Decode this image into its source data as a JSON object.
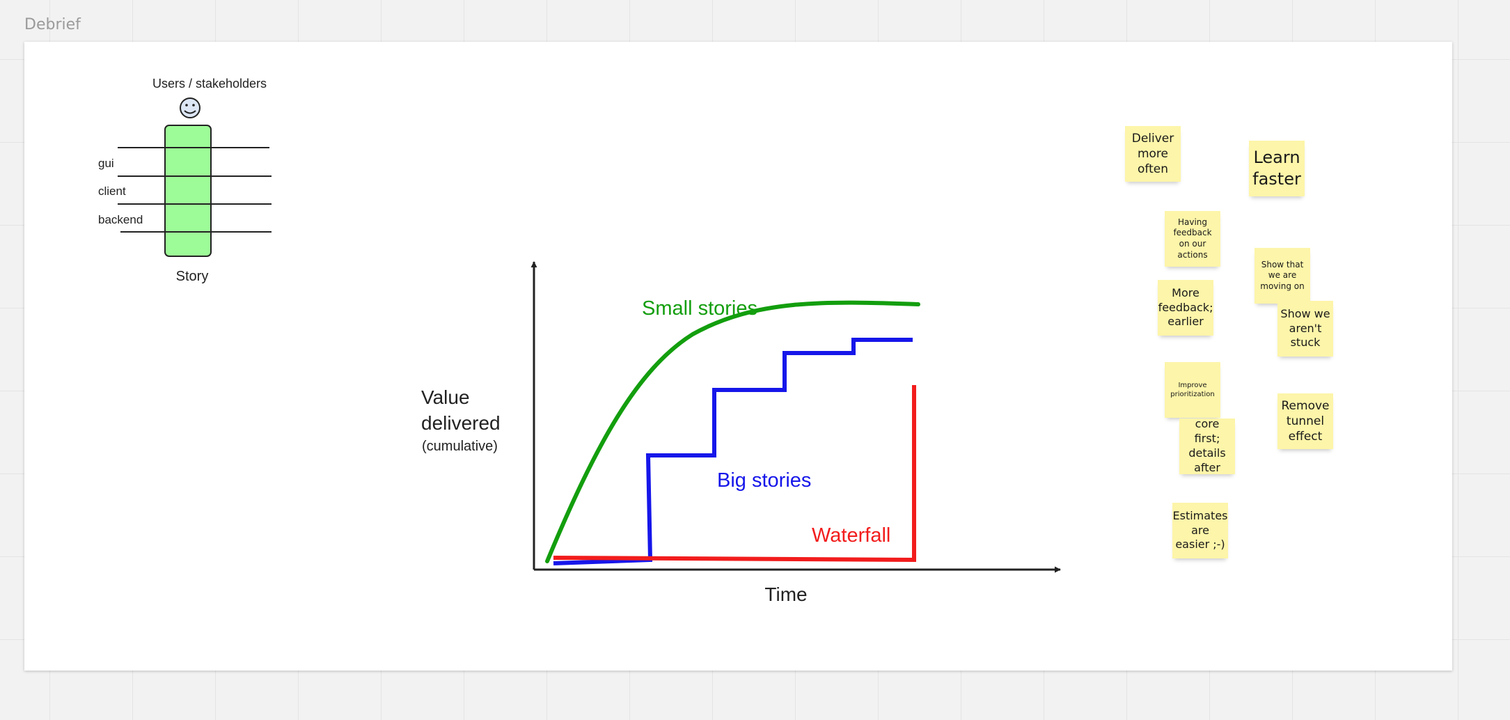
{
  "board": {
    "frame_title": "Debrief"
  },
  "story_diagram": {
    "actor_label": "Users / stakeholders",
    "layers": [
      "gui",
      "client",
      "backend"
    ],
    "story_label": "Story",
    "colors": {
      "story_fill": "#9dfc97",
      "outline": "#222222"
    }
  },
  "value_chart": {
    "y_label_line1": "Value",
    "y_label_line2": "delivered",
    "y_label_line3": "(cumulative)",
    "x_label": "Time",
    "series": [
      {
        "name": "Small stories",
        "color": "#139e0e"
      },
      {
        "name": "Big stories",
        "color": "#1616ea"
      },
      {
        "name": "Waterfall",
        "color": "#f21c1c"
      }
    ]
  },
  "stickies": [
    {
      "text": "Deliver more often"
    },
    {
      "text": "Learn faster"
    },
    {
      "text": "Having feedback on our actions"
    },
    {
      "text": "Show that we are moving on"
    },
    {
      "text": "More feedback; earlier"
    },
    {
      "text": "Show we aren't stuck"
    },
    {
      "text": "Improve prioritization"
    },
    {
      "text": "Remove tunnel effect"
    },
    {
      "text": "core first; details after"
    },
    {
      "text": "Estimates are easier ;-)"
    }
  ]
}
